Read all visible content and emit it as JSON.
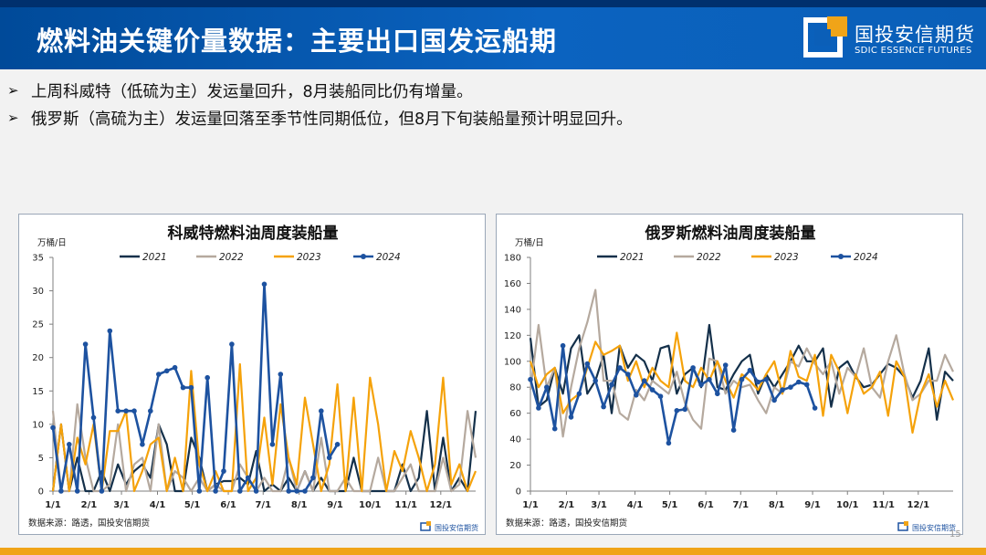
{
  "header": {
    "title_strong": "燃料油",
    "title_rest": "关键价量数据：主要出口国发运船期",
    "logo_cn": "国投安信期货",
    "logo_en": "SDIC ESSENCE FUTURES"
  },
  "bullets": [
    {
      "marker": "➢",
      "text": "上周科威特（低硫为主）发运量回升，8月装船同比仍有增量。"
    },
    {
      "marker": "➢",
      "text": "俄罗斯（高硫为主）发运量回落至季节性同期低位，但8月下旬装船量预计明显回升。"
    }
  ],
  "colors": {
    "2021": "#14304a",
    "2022": "#b5a99e",
    "2023": "#f5a20a",
    "2024": "#1d52a0",
    "header": "#0b5fb8",
    "accent": "#f0a418"
  },
  "page_number": "15",
  "chart_data": [
    {
      "id": "kuwait",
      "type": "line",
      "title": "科威特燃料油周度装船量",
      "ylabel": "万桶/日",
      "ylim": [
        0,
        35
      ],
      "yticks": [
        0,
        5,
        10,
        15,
        20,
        25,
        30,
        35
      ],
      "xlim": [
        0,
        52
      ],
      "xticks": [
        {
          "label": "1/1",
          "week": 0
        },
        {
          "label": "2/1",
          "week": 4.43
        },
        {
          "label": "3/1",
          "week": 8.43
        },
        {
          "label": "4/1",
          "week": 12.86
        },
        {
          "label": "5/1",
          "week": 17.14
        },
        {
          "label": "6/1",
          "week": 21.57
        },
        {
          "label": "7/1",
          "week": 25.86
        },
        {
          "label": "8/1",
          "week": 30.29
        },
        {
          "label": "9/1",
          "week": 34.71
        },
        {
          "label": "10/1",
          "week": 39
        },
        {
          "label": "11/1",
          "week": 43.43
        },
        {
          "label": "12/1",
          "week": 47.71
        }
      ],
      "source": "数据来源：路透，国投安信期货",
      "watermark": "国投安信期货",
      "series": [
        {
          "name": "2021",
          "values": [
            0,
            10,
            0,
            5,
            0,
            0,
            3,
            0,
            4,
            1,
            3,
            4,
            2,
            10,
            7,
            0,
            0,
            8,
            5,
            0,
            1,
            1.5,
            1.5,
            2,
            1,
            6,
            0,
            1,
            0,
            2,
            0,
            3,
            0,
            2,
            0,
            0,
            0,
            5,
            0,
            0,
            0,
            0,
            0,
            4,
            0,
            2,
            12,
            0,
            8,
            0,
            2,
            0,
            12
          ]
        },
        {
          "name": "2022",
          "values": [
            12,
            0,
            0,
            13,
            5,
            0,
            0,
            1,
            10,
            0,
            4,
            5,
            0,
            10,
            0,
            3,
            2,
            0,
            2,
            0,
            1,
            0,
            0,
            4,
            2,
            0,
            2,
            0,
            0,
            5,
            0,
            3,
            0,
            8,
            0,
            0,
            2,
            0,
            0,
            0,
            5,
            0,
            0,
            2,
            4,
            0,
            0,
            0,
            5,
            0,
            1,
            12,
            5
          ]
        },
        {
          "name": "2023",
          "values": [
            0,
            10,
            0,
            8,
            4,
            10,
            0,
            9,
            9,
            12,
            0,
            3,
            7,
            8,
            0,
            5,
            0,
            18,
            4,
            0,
            3,
            0,
            0,
            19,
            0,
            2,
            11,
            1,
            13,
            5,
            1,
            14,
            7,
            0,
            4,
            16,
            0,
            14,
            0,
            17,
            10,
            0,
            6,
            3,
            9,
            5,
            0,
            4,
            17,
            1,
            4,
            0,
            3
          ]
        },
        {
          "name": "2024",
          "values": [
            9.5,
            0,
            7,
            0,
            22,
            11,
            0,
            24,
            12,
            12,
            12,
            7,
            12,
            17.5,
            18,
            18.5,
            15.5,
            15.5,
            0,
            17,
            0,
            3,
            22,
            0,
            2,
            0,
            31,
            7,
            17.5,
            0,
            0,
            0,
            2,
            12,
            5,
            7
          ]
        }
      ]
    },
    {
      "id": "russia",
      "type": "line",
      "title": "俄罗斯燃料油周度装船量",
      "ylabel": "万桶/日",
      "ylim": [
        0,
        180
      ],
      "yticks": [
        0,
        20,
        40,
        60,
        80,
        100,
        120,
        140,
        160,
        180
      ],
      "xlim": [
        0,
        52
      ],
      "xticks": [
        {
          "label": "1/1",
          "week": 0
        },
        {
          "label": "2/1",
          "week": 4.43
        },
        {
          "label": "3/1",
          "week": 8.43
        },
        {
          "label": "4/1",
          "week": 12.86
        },
        {
          "label": "5/1",
          "week": 17.14
        },
        {
          "label": "6/1",
          "week": 21.57
        },
        {
          "label": "7/1",
          "week": 25.86
        },
        {
          "label": "8/1",
          "week": 30.29
        },
        {
          "label": "9/1",
          "week": 34.71
        },
        {
          "label": "10/1",
          "week": 39
        },
        {
          "label": "11/1",
          "week": 43.43
        },
        {
          "label": "12/1",
          "week": 47.71
        }
      ],
      "source": "数据来源：路透，国投安信期货",
      "watermark": "国投安信期货",
      "series": [
        {
          "name": "2021",
          "values": [
            118,
            65,
            70,
            95,
            75,
            110,
            120,
            75,
            85,
            105,
            60,
            112,
            95,
            105,
            100,
            85,
            110,
            112,
            75,
            90,
            95,
            80,
            128,
            80,
            78,
            90,
            100,
            105,
            75,
            90,
            80,
            90,
            100,
            112,
            100,
            100,
            110,
            65,
            95,
            100,
            88,
            80,
            82,
            90,
            98,
            95,
            88,
            72,
            85,
            110,
            55,
            92,
            85
          ]
        },
        {
          "name": "2022",
          "values": [
            78,
            128,
            80,
            95,
            42,
            80,
            110,
            130,
            155,
            85,
            85,
            60,
            55,
            78,
            70,
            85,
            80,
            75,
            92,
            68,
            55,
            48,
            102,
            100,
            75,
            85,
            80,
            82,
            70,
            60,
            80,
            75,
            100,
            96,
            110,
            98,
            90,
            100,
            75,
            95,
            88,
            110,
            80,
            72,
            100,
            120,
            90,
            70,
            75,
            85,
            85,
            105,
            92
          ]
        },
        {
          "name": "2023",
          "values": [
            100,
            80,
            90,
            95,
            60,
            70,
            75,
            95,
            115,
            105,
            108,
            112,
            85,
            100,
            80,
            95,
            85,
            80,
            122,
            85,
            80,
            95,
            85,
            100,
            85,
            72,
            90,
            85,
            78,
            90,
            100,
            75,
            108,
            88,
            85,
            105,
            58,
            105,
            92,
            60,
            90,
            75,
            80,
            92,
            58,
            100,
            88,
            45,
            75,
            90,
            65,
            85,
            70
          ]
        },
        {
          "name": "2024",
          "values": [
            86,
            64,
            80,
            48,
            112,
            57,
            75,
            98,
            85,
            65,
            82,
            95,
            90,
            74,
            85,
            78,
            73,
            37,
            62,
            63,
            95,
            82,
            86,
            75,
            97,
            47,
            86,
            93,
            84,
            86,
            70,
            78,
            80,
            84,
            82,
            64
          ]
        }
      ]
    }
  ]
}
